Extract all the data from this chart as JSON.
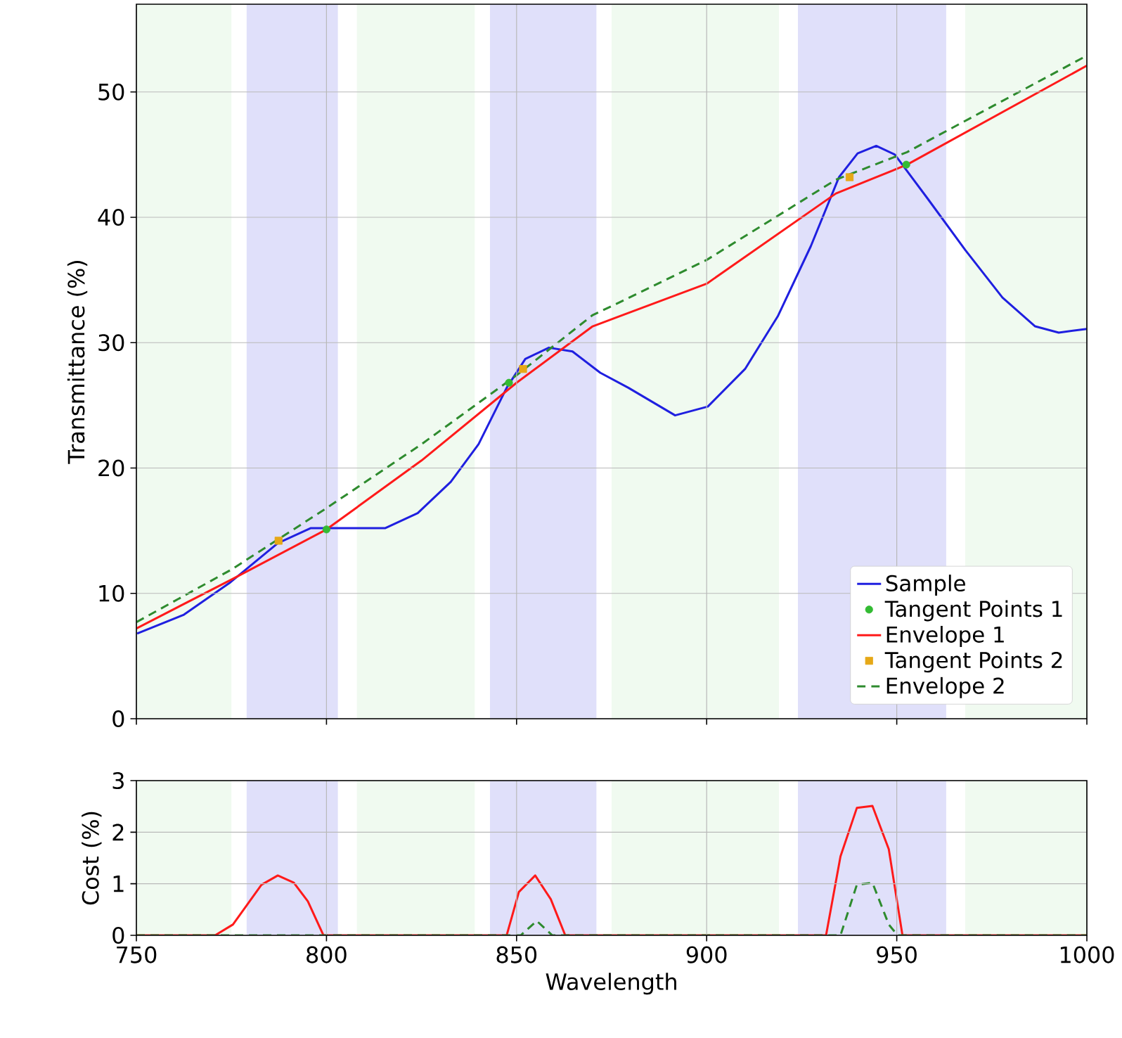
{
  "chart_data": [
    {
      "type": "line",
      "ylabel": "Transmittance (%)",
      "xlim": [
        750,
        1000
      ],
      "ylim": [
        0,
        57
      ],
      "xticks": [
        750,
        800,
        850,
        900,
        950,
        1000
      ],
      "yticks": [
        0,
        10,
        20,
        30,
        40,
        50
      ],
      "tick_labels": "y",
      "grid": true,
      "legend": "bottom right",
      "bands": [
        {
          "axis": "x",
          "from": 750,
          "to": 775,
          "color": "#f0faf0"
        },
        {
          "axis": "x",
          "from": 808,
          "to": 839,
          "color": "#f0faf0"
        },
        {
          "axis": "x",
          "from": 875,
          "to": 919,
          "color": "#f0faf0"
        },
        {
          "axis": "x",
          "from": 968,
          "to": 1000,
          "color": "#f0faf0"
        },
        {
          "axis": "x",
          "from": 779,
          "to": 803,
          "color": "#e0e0fa"
        },
        {
          "axis": "x",
          "from": 843,
          "to": 871,
          "color": "#e0e0fa"
        },
        {
          "axis": "x",
          "from": 924,
          "to": 963,
          "color": "#e0e0fa"
        }
      ],
      "series": [
        {
          "name": "Sample",
          "color": "#1f1fe0",
          "line_style": "solid",
          "x": [
            750.2,
            762.5,
            774.8,
            787.2,
            795.8,
            805.6,
            815.4,
            824,
            832.7,
            840,
            847.4,
            852.3,
            858.5,
            864.7,
            872,
            879.4,
            891.7,
            900.3,
            910.1,
            918.7,
            927.4,
            934.8,
            939.7,
            944.6,
            949.5,
            958.1,
            968,
            977.8,
            986.4,
            992.6,
            1000
          ],
          "values": [
            6.8,
            8.3,
            10.9,
            14,
            15.2,
            15.2,
            15.2,
            16.4,
            18.9,
            21.9,
            26.4,
            28.7,
            29.6,
            29.3,
            27.6,
            26.4,
            24.2,
            24.9,
            27.9,
            32.1,
            37.7,
            43.2,
            45.1,
            45.7,
            45,
            41.5,
            37.4,
            33.6,
            31.3,
            30.8,
            31.1
          ]
        },
        {
          "name": "Tangent Points 1",
          "type": "scatter",
          "color": "#33bb33",
          "marker": "circle",
          "x": [
            800,
            848,
            952.5
          ],
          "values": [
            15.1,
            26.8,
            44.2
          ]
        },
        {
          "name": "Envelope 1",
          "color": "#ff1a1a",
          "line_style": "solid",
          "x": [
            750,
            775,
            800,
            825,
            850,
            870,
            877,
            900,
            934,
            952.7,
            1000
          ],
          "values": [
            7.2,
            11.1,
            15.1,
            20.6,
            26.8,
            31.3,
            32.1,
            34.7,
            41.9,
            44.2,
            52.1
          ]
        },
        {
          "name": "Tangent Points 2",
          "type": "scatter",
          "color": "#e6a817",
          "marker": "square",
          "x": [
            787.4,
            851.7,
            937.6
          ],
          "values": [
            14.2,
            27.9,
            43.2
          ]
        },
        {
          "name": "Envelope 2",
          "color": "#2e8b2e",
          "line_style": "dashed",
          "x": [
            750,
            775,
            800,
            825,
            850,
            870,
            877,
            900,
            934,
            952.7,
            1000
          ],
          "values": [
            7.7,
            11.9,
            16.8,
            21.9,
            27.4,
            32.2,
            33.2,
            36.6,
            43,
            45.2,
            52.9
          ]
        }
      ]
    },
    {
      "type": "line",
      "xlabel": "Wavelength",
      "ylabel": "Cost (%)",
      "xlim": [
        750,
        1000
      ],
      "ylim": [
        0,
        3
      ],
      "xticks": [
        750,
        800,
        850,
        900,
        950,
        1000
      ],
      "yticks": [
        0,
        1,
        2,
        3
      ],
      "grid": true,
      "bands": [
        {
          "axis": "x",
          "from": 750,
          "to": 775,
          "color": "#f0faf0"
        },
        {
          "axis": "x",
          "from": 808,
          "to": 839,
          "color": "#f0faf0"
        },
        {
          "axis": "x",
          "from": 875,
          "to": 919,
          "color": "#f0faf0"
        },
        {
          "axis": "x",
          "from": 968,
          "to": 1000,
          "color": "#f0faf0"
        },
        {
          "axis": "x",
          "from": 779,
          "to": 803,
          "color": "#e0e0fa"
        },
        {
          "axis": "x",
          "from": 843,
          "to": 871,
          "color": "#e0e0fa"
        },
        {
          "axis": "x",
          "from": 924,
          "to": 963,
          "color": "#e0e0fa"
        }
      ],
      "series": [
        {
          "color": "#ff1a1a",
          "line_style": "solid",
          "x": [
            750,
            770.7,
            775.4,
            782.9,
            787.2,
            791.4,
            795.1,
            799.2,
            847.4,
            850.6,
            854.9,
            859,
            862.8,
            931.4,
            935.2,
            939.5,
            943.6,
            947.9,
            951.5,
            1000
          ],
          "values": [
            0,
            0,
            0.21,
            0.98,
            1.16,
            1.02,
            0.66,
            0,
            0,
            0.84,
            1.16,
            0.7,
            0,
            0,
            1.53,
            2.47,
            2.51,
            1.67,
            0,
            0
          ]
        },
        {
          "color": "#2e8b2e",
          "line_style": "dashed",
          "x": [
            750,
            851.1,
            855.3,
            859.4,
            935.2,
            939.5,
            943.6,
            947.9,
            950.2,
            1000
          ],
          "values": [
            0,
            0,
            0.28,
            0,
            0,
            0.98,
            1.02,
            0.21,
            0,
            0
          ]
        }
      ]
    }
  ]
}
